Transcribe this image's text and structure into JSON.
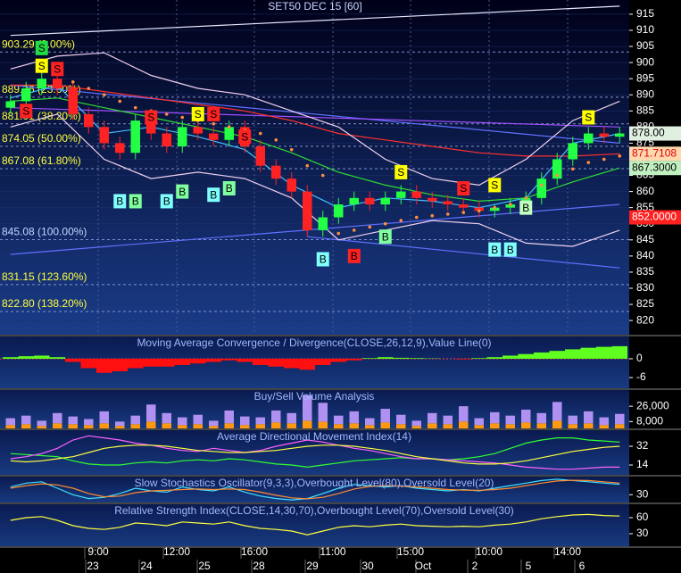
{
  "chart_data": [
    {
      "type": "candlestick",
      "title": "SET50 DEC 15  [60]",
      "ylim": [
        815.6,
        919.4
      ],
      "yticks": [
        820,
        825,
        830,
        835,
        840,
        845,
        850,
        855,
        860,
        865,
        870,
        875,
        880,
        885,
        890,
        895,
        900,
        905,
        910,
        915
      ],
      "grid": true,
      "up_color": "#22ff44",
      "down_color": "#ff2222",
      "open": [
        886,
        888,
        892,
        895,
        892,
        884,
        880,
        875,
        872,
        882,
        878,
        874,
        880,
        878,
        876,
        880,
        874,
        868,
        864,
        860,
        848,
        852,
        856,
        858,
        856,
        858,
        860,
        858,
        857,
        856,
        855,
        854,
        855,
        856,
        858,
        864,
        870,
        875,
        878,
        877
      ],
      "high": [
        890,
        894,
        897,
        897,
        894,
        886,
        882,
        877,
        884,
        884,
        880,
        882,
        882,
        880,
        882,
        882,
        876,
        870,
        866,
        862,
        854,
        858,
        860,
        860,
        860,
        862,
        862,
        860,
        859,
        858,
        857,
        856,
        858,
        860,
        866,
        872,
        877,
        880,
        880,
        880
      ],
      "low": [
        884,
        886,
        890,
        890,
        882,
        878,
        873,
        870,
        870,
        876,
        872,
        872,
        876,
        874,
        874,
        872,
        866,
        862,
        858,
        846,
        846,
        850,
        854,
        854,
        854,
        856,
        856,
        855,
        854,
        853,
        852,
        852,
        853,
        854,
        856,
        862,
        868,
        873,
        875,
        875
      ],
      "close": [
        888,
        892,
        895,
        892,
        884,
        880,
        875,
        872,
        882,
        878,
        874,
        880,
        878,
        876,
        880,
        874,
        868,
        864,
        860,
        848,
        852,
        856,
        858,
        856,
        858,
        860,
        858,
        857,
        856,
        855,
        854,
        855,
        856,
        858,
        864,
        870,
        875,
        878,
        877,
        878
      ],
      "sar": [
        null,
        null,
        null,
        null,
        894,
        892,
        890,
        888,
        886,
        885,
        884,
        883,
        882,
        881,
        880,
        879,
        878,
        876,
        873,
        868,
        865,
        847,
        848,
        849,
        850,
        851,
        852,
        852.5,
        853,
        853.5,
        854,
        855,
        856,
        858,
        862,
        865,
        867,
        869,
        870,
        871
      ],
      "sar_color": "#ff8c40",
      "overlays": [
        {
          "color": "#e8e8ff",
          "x": [
            0,
            39
          ],
          "values": [
            908.4,
            917.5
          ]
        },
        {
          "color": "#6070ff",
          "x": [
            0,
            39
          ],
          "values": [
            893,
            875
          ]
        },
        {
          "color": "#6070ff",
          "x": [
            0,
            39
          ],
          "values": [
            840.5,
            856
          ]
        },
        {
          "color": "#a050ff",
          "x": [
            0,
            39
          ],
          "values": [
            886,
            880
          ]
        },
        {
          "color": "#6070ff",
          "x": [
            19,
            39
          ],
          "values": [
            846,
            836.3
          ]
        },
        {
          "color": "#ff3030",
          "x": [
            0,
            3,
            6,
            9,
            12,
            15,
            18,
            21,
            24,
            27,
            30,
            33,
            36,
            39
          ],
          "values": [
            893,
            893,
            891,
            889,
            887,
            885,
            882,
            878,
            876,
            874,
            872,
            871,
            871,
            871.7
          ]
        },
        {
          "color": "#30dd30",
          "x": [
            0,
            3,
            6,
            9,
            12,
            15,
            18,
            21,
            24,
            27,
            30,
            33,
            36,
            39
          ],
          "values": [
            888,
            889,
            886,
            883,
            880,
            877,
            872,
            866,
            862,
            859,
            857,
            858,
            863,
            867.3
          ]
        },
        {
          "color": "#f0d0f0",
          "x": [
            0,
            3,
            6,
            9,
            12,
            15,
            18,
            21,
            24,
            27,
            30,
            33,
            36,
            39
          ],
          "values": [
            898,
            902,
            903,
            896,
            892,
            890,
            885,
            880,
            870,
            864,
            862,
            870,
            882,
            888
          ]
        },
        {
          "color": "#f0d0f0",
          "x": [
            0,
            3,
            6,
            9,
            12,
            15,
            18,
            21,
            24,
            27,
            30,
            33,
            36,
            39
          ],
          "values": [
            880,
            884,
            870,
            864,
            866,
            864,
            858,
            845,
            848,
            851,
            850,
            844,
            843,
            848
          ]
        },
        {
          "color": "#40c0ff",
          "x": [
            0,
            3,
            6,
            9,
            12,
            15,
            18,
            21,
            24,
            27,
            30,
            33,
            36,
            39
          ],
          "values": [
            889,
            893,
            878,
            880,
            877,
            873,
            862,
            855,
            858,
            857,
            855,
            858,
            875,
            878
          ]
        }
      ],
      "fib_levels": [
        {
          "value": 903.29,
          "label": "903.29 (0.00%)",
          "color": "#ffff40"
        },
        {
          "value": 889.26,
          "label": "889.26 (23.60%)",
          "color": "#ffff40"
        },
        {
          "value": 881.01,
          "label": "881.01 (38.20%)",
          "color": "#ffff40"
        },
        {
          "value": 874.05,
          "label": "874.05 (50.00%)",
          "color": "#ffff40"
        },
        {
          "value": 867.08,
          "label": "867.08 (61.80%)",
          "color": "#ffff40"
        },
        {
          "value": 845.08,
          "label": "845.08 (100.00%)",
          "color": "#c0d8ff"
        },
        {
          "value": 831.15,
          "label": "831.15 (123.60%)",
          "color": "#ffff40"
        },
        {
          "value": 822.8,
          "label": "822.80 (138.20%)",
          "color": "#ffff40"
        }
      ],
      "price_tags": [
        {
          "value": 878,
          "label": "878.00",
          "color": "#e0f0e0",
          "text_color": "#000000"
        },
        {
          "value": 871.7108,
          "label": "871.7108",
          "color": "#ffd8b0",
          "text_color": "#e00000"
        },
        {
          "value": 867.3,
          "label": "867.3000",
          "color": "#c0f0c0",
          "text_color": "#000000"
        },
        {
          "value": 852,
          "label": "852.0000",
          "color": "#ff2020",
          "text_color": "#ffffff"
        }
      ],
      "signals": [
        {
          "x": 2,
          "value": 904.5,
          "label": "S",
          "color": "#22dd44"
        },
        {
          "x": 2,
          "value": 899,
          "label": "S",
          "color": "#ffff00"
        },
        {
          "x": 3,
          "value": 898,
          "label": "S",
          "color": "#ff2222"
        },
        {
          "x": 1,
          "value": 885,
          "label": "S",
          "color": "#ff2222"
        },
        {
          "x": 9,
          "value": 883,
          "label": "S",
          "color": "#ff2222"
        },
        {
          "x": 12,
          "value": 884,
          "label": "S",
          "color": "#ffff00"
        },
        {
          "x": 13,
          "value": 884,
          "label": "S",
          "color": "#ff2222"
        },
        {
          "x": 15,
          "value": 877,
          "label": "S",
          "color": "#ff2222"
        },
        {
          "x": 25,
          "value": 866,
          "label": "S",
          "color": "#ffff00"
        },
        {
          "x": 29,
          "value": 861,
          "label": "S",
          "color": "#ff2222"
        },
        {
          "x": 31,
          "value": 862,
          "label": "S",
          "color": "#ffff00"
        },
        {
          "x": 37,
          "value": 883,
          "label": "S",
          "color": "#ffff00"
        },
        {
          "x": 7,
          "value": 857,
          "label": "B",
          "color": "#80ffff"
        },
        {
          "x": 8,
          "value": 857,
          "label": "B",
          "color": "#80ffa0"
        },
        {
          "x": 10,
          "value": 857,
          "label": "B",
          "color": "#80ffff"
        },
        {
          "x": 11,
          "value": 860,
          "label": "B",
          "color": "#80ffa0"
        },
        {
          "x": 13,
          "value": 859,
          "label": "B",
          "color": "#80ffff"
        },
        {
          "x": 14,
          "value": 861,
          "label": "B",
          "color": "#80ffa0"
        },
        {
          "x": 20,
          "value": 839,
          "label": "B",
          "color": "#80ffff"
        },
        {
          "x": 22,
          "value": 840,
          "label": "B",
          "color": "#ff2222"
        },
        {
          "x": 24,
          "value": 846,
          "label": "B",
          "color": "#80ffa0"
        },
        {
          "x": 31,
          "value": 842,
          "label": "B",
          "color": "#80ffff"
        },
        {
          "x": 32,
          "value": 842,
          "label": "B",
          "color": "#80ffff"
        },
        {
          "x": 33,
          "value": 855,
          "label": "B",
          "color": "#c0ffc0"
        }
      ],
      "time_labels": [
        "9:00",
        "12:00",
        "16:00",
        "11:00",
        "15:00",
        "10:00",
        "14:00"
      ],
      "date_labels": [
        "23",
        "24",
        "25",
        "28",
        "29",
        "30",
        "Oct",
        "2",
        "5",
        "6"
      ]
    },
    {
      "type": "histogram",
      "title": "Moving Average Convergence / Divergence(CLOSE,26,12,9),Value Line(0)",
      "ylim": [
        -9.4,
        7.1
      ],
      "yticks": [
        0,
        -6
      ],
      "up_color": "#60ff20",
      "down_color": "#ff1010",
      "values": [
        0.5,
        0.8,
        1,
        0.5,
        -1,
        -3,
        -4.5,
        -4,
        -3,
        -2.5,
        -2.5,
        -2,
        -1.5,
        -1,
        -0.5,
        -1,
        -2,
        -2.5,
        -3,
        -3.5,
        -2,
        -1,
        -0.5,
        0.2,
        0.5,
        0.3,
        0.2,
        0.1,
        0,
        -0.2,
        0.2,
        0.5,
        1,
        1.5,
        2,
        2.5,
        3,
        3.5,
        3.8,
        4
      ]
    },
    {
      "type": "stacked_bar",
      "title": "Buy/Sell Volume Analysis",
      "ylim": [
        0,
        45000
      ],
      "yticks": [
        {
          "value": 26000,
          "label": "26,000"
        },
        {
          "value": 8000,
          "label": "8,000"
        }
      ],
      "series": [
        {
          "color": "#ff9a10",
          "values": [
            4000,
            5000,
            3000,
            6000,
            5000,
            4000,
            6000,
            3000,
            5000,
            8000,
            6000,
            4000,
            5000,
            3000,
            6000,
            4000,
            5000,
            7000,
            6000,
            9000,
            8000,
            5000,
            6000,
            4000,
            7000,
            5000,
            3000,
            6000,
            5000,
            8000,
            4000,
            6000,
            5000,
            7000,
            6000,
            9000,
            5000,
            6000,
            4000,
            5000
          ]
        },
        {
          "color": "#b090f0",
          "values": [
            8000,
            10000,
            6000,
            12000,
            9000,
            7000,
            14000,
            5000,
            10000,
            20000,
            12000,
            9000,
            11000,
            6000,
            15000,
            10000,
            8000,
            14000,
            12000,
            30000,
            22000,
            10000,
            14000,
            8000,
            16000,
            11000,
            6000,
            12000,
            10000,
            18000,
            8000,
            13000,
            10000,
            15000,
            12000,
            22000,
            10000,
            14000,
            9000,
            12000
          ]
        }
      ]
    },
    {
      "type": "line",
      "title": "Average Directional Movement Index(14)",
      "ylim": [
        4.6,
        47.4
      ],
      "yticks": [
        32,
        14
      ],
      "series": [
        {
          "color": "#30ff30",
          "values": [
            25,
            24,
            23,
            22,
            18,
            15,
            14,
            14,
            16,
            17,
            16,
            18,
            19,
            18,
            20,
            19,
            17,
            15,
            14,
            12,
            14,
            16,
            18,
            19,
            20,
            21,
            20,
            20,
            19,
            20,
            22,
            25,
            30,
            35,
            38,
            40,
            40,
            38,
            37,
            36
          ]
        },
        {
          "color": "#ff60ff",
          "values": [
            20,
            22,
            25,
            30,
            38,
            42,
            40,
            38,
            35,
            33,
            30,
            28,
            27,
            30,
            28,
            26,
            28,
            32,
            35,
            38,
            36,
            33,
            30,
            28,
            25,
            22,
            20,
            20,
            19,
            18,
            17,
            16,
            14,
            12,
            11,
            10,
            10,
            11,
            12,
            12
          ]
        },
        {
          "color": "#ffff40",
          "values": [
            18,
            17,
            18,
            20,
            22,
            26,
            30,
            32,
            33,
            33,
            32,
            30,
            28,
            27,
            26,
            26,
            27,
            28,
            30,
            32,
            33,
            33,
            32,
            30,
            28,
            25,
            22,
            20,
            18,
            16,
            15,
            15,
            16,
            18,
            21,
            24,
            27,
            29,
            31,
            32
          ]
        }
      ]
    },
    {
      "type": "line",
      "title": "Slow Stochastics Oscillator(9,3,3),Overbought Level(80),Oversold Level(20)",
      "ylim": [
        0,
        100
      ],
      "yticks": [
        30
      ],
      "series": [
        {
          "color": "#40e0ff",
          "values": [
            60,
            75,
            80,
            55,
            30,
            15,
            20,
            35,
            55,
            45,
            40,
            60,
            50,
            45,
            60,
            40,
            25,
            15,
            10,
            15,
            35,
            55,
            70,
            65,
            60,
            65,
            55,
            50,
            45,
            50,
            45,
            55,
            65,
            75,
            85,
            90,
            85,
            80,
            75,
            70
          ]
        },
        {
          "color": "#ff8c30",
          "values": [
            55,
            65,
            72,
            68,
            55,
            35,
            22,
            25,
            38,
            45,
            47,
            50,
            52,
            50,
            52,
            50,
            40,
            28,
            18,
            14,
            20,
            35,
            52,
            62,
            65,
            63,
            60,
            55,
            50,
            48,
            47,
            50,
            55,
            65,
            75,
            83,
            86,
            85,
            80,
            75
          ]
        }
      ]
    },
    {
      "type": "line",
      "title": "Relative Strength Index(CLOSE,14,30,70),Overbought Level(70),Oversold Level(30)",
      "ylim": [
        6.7,
        85
      ],
      "yticks": [
        60,
        30
      ],
      "series": [
        {
          "color": "#ffff40",
          "values": [
            55,
            60,
            62,
            55,
            45,
            40,
            38,
            42,
            50,
            48,
            45,
            52,
            50,
            48,
            52,
            45,
            40,
            38,
            35,
            28,
            35,
            42,
            45,
            43,
            46,
            48,
            45,
            44,
            43,
            44,
            43,
            46,
            48,
            52,
            58,
            62,
            65,
            66,
            64,
            63
          ]
        }
      ]
    }
  ]
}
